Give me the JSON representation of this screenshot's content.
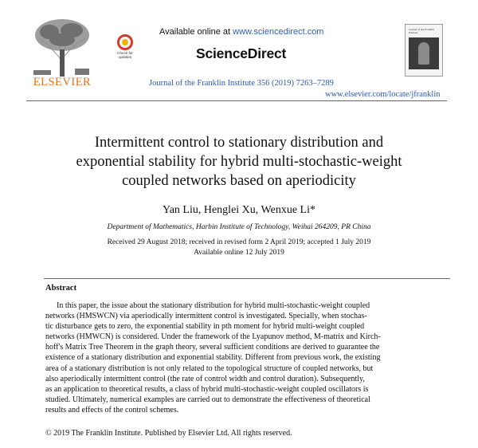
{
  "header": {
    "publisher_logo_text": "ELSEVIER",
    "check_updates_label": [
      "Check for",
      "updates"
    ],
    "available_prefix": "Available online at ",
    "available_url": "www.sciencedirect.com",
    "brand": "ScienceDirect",
    "journal_citation": "Journal of the Franklin Institute 356 (2019) 7263–7289",
    "journal_url": "www.elsevier.com/locate/jfranklin",
    "cover_text": "Journal of the Franklin Institute"
  },
  "article": {
    "title_lines": [
      "Intermittent control to stationary distribution and",
      "exponential stability for hybrid multi-stochastic-weight",
      "coupled networks based on aperiodicity"
    ],
    "authors": "Yan Liu, Henglei Xu, Wenxue Li*",
    "affiliation": "Department of Mathematics, Harbin Institute of Technology, Weihai 264209, PR China",
    "received": "Received 29 August 2018; received in revised form 2 April 2019; accepted 1 July 2019",
    "available_online": "Available online 12 July 2019"
  },
  "abstract": {
    "heading": "Abstract",
    "lines": [
      "In this paper, the issue about the stationary distribution for hybrid multi-stochastic-weight coupled",
      "networks (HMSWCN) via aperiodically intermittent control is investigated. Specially, when stochas-",
      "tic disturbance gets to zero, the exponential stability in pth moment for hybrid multi-weight coupled",
      "networks (HMWCN) is considered. Under the framework of the Lyapunov method, M-matrix and Kirch-",
      "hoff's Matrix Tree Theorem in the graph theory, several sufficient conditions are derived to guarantee the",
      "existence of a stationary distribution and exponential stability. Different from previous work, the existing",
      "area of a stationary distribution is not only related to the topological structure of coupled networks, but",
      "also aperiodically intermittent control (the rate of control width and control duration). Subsequently,",
      "as an application to theoretical results, a class of hybrid multi-stochastic-weight coupled oscillators is",
      "studied. Ultimately, numerical examples are carried out to demonstrate the effectiveness of theoretical",
      "results and effects of the control schemes."
    ],
    "copyright": "© 2019 The Franklin Institute. Published by Elsevier Ltd. All rights reserved."
  }
}
